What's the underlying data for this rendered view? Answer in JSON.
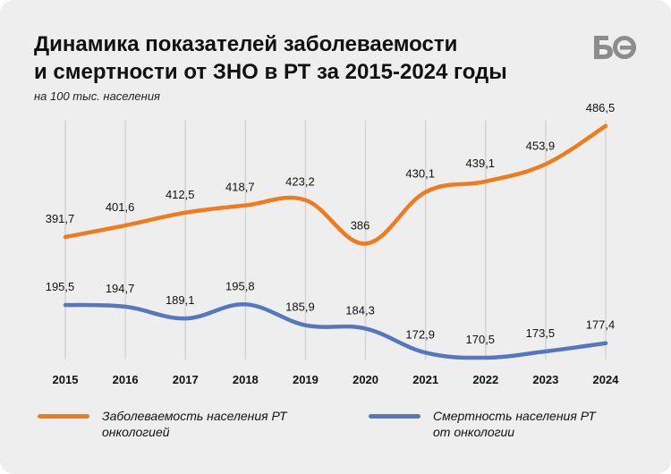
{
  "title": "Динамика показателей заболеваемости\nи смертности от ЗНО в РТ за 2015-2024 годы",
  "title_lines": [
    "Динамика показателей заболеваемости",
    "и смертности от ЗНО в РТ за 2015-2024 годы"
  ],
  "subtitle": "на 100 тыс. населения",
  "logo": {
    "text": "БО",
    "icon": "bo-logo-icon",
    "color": "#8c8c8c"
  },
  "colors": {
    "incidence": "#f07b1d",
    "mortality": "#5577bd",
    "grid": "#d4d4d4",
    "background": "#eeeeee"
  },
  "legend": [
    {
      "name": "Заболеваемость населения РТ\nонкологией",
      "color": "#f07b1d"
    },
    {
      "name": "Смертность населения РТ\nот онкологии",
      "color": "#5577bd"
    }
  ],
  "chart_data": {
    "type": "line",
    "x": [
      2015,
      2016,
      2017,
      2018,
      2019,
      2020,
      2021,
      2022,
      2023,
      2024
    ],
    "series": [
      {
        "name": "Заболеваемость населения РТ онкологией",
        "values": [
          391.7,
          401.6,
          412.5,
          418.7,
          423.2,
          386,
          430.1,
          439.1,
          453.9,
          486.5
        ],
        "labels": [
          "391,7",
          "401,6",
          "412,5",
          "418,7",
          "423,2",
          "386",
          "430,1",
          "439,1",
          "453,9",
          "486,5"
        ]
      },
      {
        "name": "Смертность населения РТ от онкологии",
        "values": [
          195.5,
          194.7,
          189.1,
          195.8,
          185.9,
          184.3,
          172.9,
          170.5,
          173.5,
          177.4
        ],
        "labels": [
          "195,5",
          "194,7",
          "189,1",
          "195,8",
          "185,9",
          "184,3",
          "172,9",
          "170,5",
          "173,5",
          "177,4"
        ]
      }
    ],
    "grid": "vertical",
    "legend_position": "bottom",
    "smooth": true,
    "data_labels": "above"
  }
}
